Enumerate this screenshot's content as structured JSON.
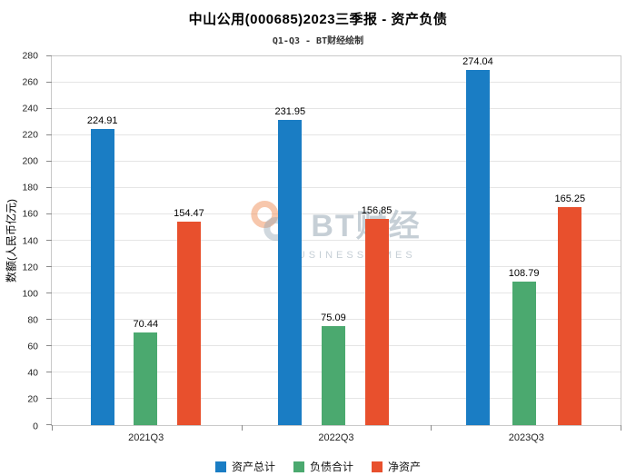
{
  "chart_data": {
    "type": "bar",
    "title": "中山公用(000685)2023三季报 - 资产负债",
    "subtitle": "Q1-Q3 - BT财经绘制",
    "ylabel": "数额(人民币亿元)",
    "xlabel": "",
    "categories": [
      "2021Q3",
      "2022Q3",
      "2023Q3"
    ],
    "series": [
      {
        "name": "资产总计",
        "color": "#1a7dc4",
        "values": [
          224.91,
          231.95,
          274.04
        ]
      },
      {
        "name": "负债合计",
        "color": "#4ba96f",
        "values": [
          70.44,
          75.09,
          108.79
        ]
      },
      {
        "name": "净资产",
        "color": "#e8502d",
        "values": [
          154.47,
          156.85,
          165.25
        ]
      }
    ],
    "ylim": [
      0,
      280
    ],
    "ytick_step": 20,
    "grid": true,
    "legend_position": "bottom"
  },
  "watermark": {
    "text": "BT财经",
    "subtext": "BUSINESSTIMES"
  }
}
